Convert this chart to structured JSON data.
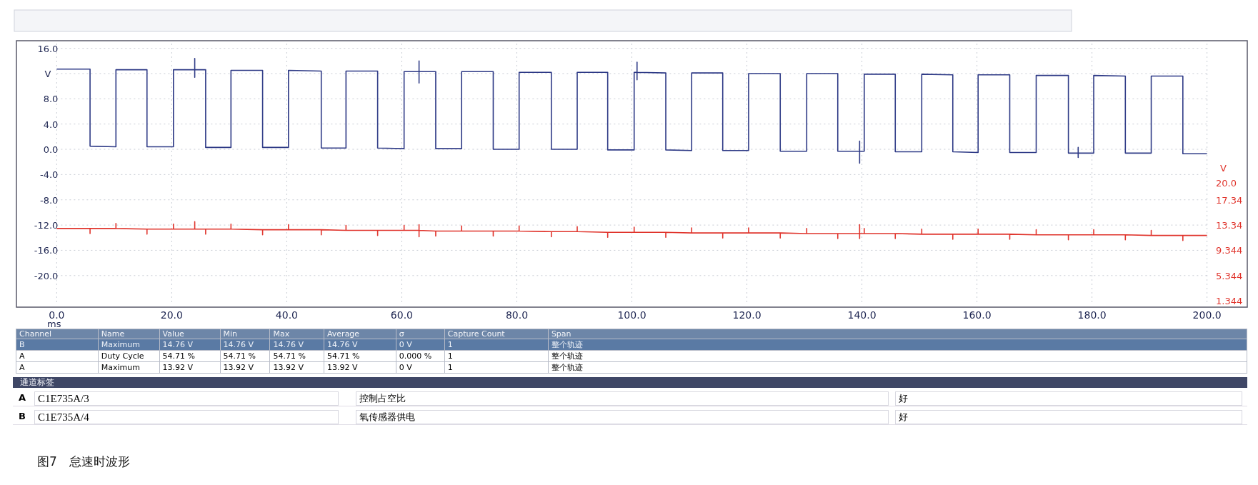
{
  "chart_data": [
    {
      "type": "line",
      "xlabel": "ms",
      "ylabel": "V",
      "y2label": "V",
      "xlim": [
        -7,
        207
      ],
      "ylim": [
        -25,
        17.2
      ],
      "y2lim": [
        0.344,
        42.544
      ],
      "xticks": [
        {
          "value": 0,
          "label": "0.0"
        },
        {
          "value": 20,
          "label": "20.0"
        },
        {
          "value": 40,
          "label": "40.0"
        },
        {
          "value": 60,
          "label": "60.0"
        },
        {
          "value": 80,
          "label": "80.0"
        },
        {
          "value": 100,
          "label": "100.0"
        },
        {
          "value": 120,
          "label": "120.0"
        },
        {
          "value": 140,
          "label": "140.0"
        },
        {
          "value": 160,
          "label": "160.0"
        },
        {
          "value": 180,
          "label": "180.0"
        },
        {
          "value": 200,
          "label": "200.0"
        }
      ],
      "yticks": [
        {
          "value": -20,
          "label": "-20.0"
        },
        {
          "value": -16,
          "label": "-16.0"
        },
        {
          "value": -12,
          "label": "-12.0"
        },
        {
          "value": -8,
          "label": "-8.0"
        },
        {
          "value": -4,
          "label": "-4.0"
        },
        {
          "value": 0,
          "label": "0.0"
        },
        {
          "value": 4,
          "label": "4.0"
        },
        {
          "value": 8,
          "label": "8.0"
        },
        {
          "value": 12,
          "label": null
        },
        {
          "value": 16,
          "label": "16.0"
        }
      ],
      "y2ticks": [
        {
          "value": 1.344,
          "label": "1.344"
        },
        {
          "value": 5.344,
          "label": "5.344"
        },
        {
          "value": 9.344,
          "label": "9.344"
        },
        {
          "value": 13.34,
          "label": "13.34"
        },
        {
          "value": 17.34,
          "label": "17.34"
        },
        {
          "value": 20,
          "label": "20.0"
        }
      ],
      "grid": true,
      "series": [
        {
          "color": "#2e3a86",
          "x": [
            0,
            5.8,
            5.8,
            10.3,
            10.3,
            15.7,
            15.7,
            20.3,
            20.3,
            24,
            24,
            24,
            24,
            25.9,
            25.9,
            30.3,
            30.3,
            35.8,
            35.8,
            40.3,
            40.3,
            46,
            46,
            50.3,
            50.3,
            55.8,
            55.8,
            60.4,
            60.4,
            63,
            63,
            63,
            63,
            65.9,
            65.9,
            70.4,
            70.4,
            75.9,
            75.9,
            80.4,
            80.4,
            86,
            86,
            90.5,
            90.5,
            95.8,
            95.8,
            100.4,
            100.4,
            100.9,
            100.9,
            100.9,
            100.9,
            105.9,
            105.9,
            110.4,
            110.4,
            115.8,
            115.8,
            120.3,
            120.3,
            125.8,
            125.8,
            130.4,
            130.4,
            135.8,
            135.8,
            139.6,
            139.6,
            139.6,
            139.6,
            140.4,
            140.4,
            145.8,
            145.8,
            150.4,
            150.4,
            155.8,
            155.8,
            160.2,
            160.2,
            165.7,
            165.7,
            170.3,
            170.3,
            175.9,
            175.9,
            177.6,
            177.6,
            177.6,
            177.6,
            180.3,
            180.3,
            185.8,
            185.8,
            190.3,
            190.3,
            195.8,
            195.8,
            200
          ],
          "values": [
            12.7,
            12.7,
            0.5,
            0.4,
            12.6,
            12.6,
            0.4,
            0.4,
            12.6,
            12.6,
            14.4,
            11.4,
            12.6,
            12.6,
            0.3,
            0.3,
            12.5,
            12.5,
            0.3,
            0.3,
            12.5,
            12.4,
            0.2,
            0.2,
            12.4,
            12.4,
            0.2,
            0.1,
            12.3,
            12.3,
            14.0,
            10.5,
            12.3,
            12.3,
            0.1,
            0.1,
            12.3,
            12.3,
            0.0,
            0.0,
            12.2,
            12.2,
            0.0,
            0.0,
            12.2,
            12.2,
            -0.1,
            -0.1,
            12.2,
            12.2,
            13.8,
            11.0,
            12.2,
            12.1,
            -0.1,
            -0.2,
            12.1,
            12.1,
            -0.2,
            -0.2,
            12.0,
            12.0,
            -0.3,
            -0.3,
            12.0,
            12.0,
            -0.3,
            -0.3,
            1.3,
            -2.2,
            -0.3,
            -0.3,
            11.9,
            11.9,
            -0.4,
            -0.4,
            11.9,
            11.8,
            -0.4,
            -0.5,
            11.8,
            11.8,
            -0.5,
            -0.5,
            11.7,
            11.7,
            -0.6,
            -0.6,
            0.3,
            -1.3,
            -0.6,
            -0.6,
            11.7,
            11.6,
            -0.6,
            -0.6,
            11.6,
            11.6,
            -0.7,
            -0.7
          ]
        },
        {
          "color": "#e0342c",
          "axis": "y2",
          "x": [
            0,
            5.8,
            5.8,
            5.8,
            10.3,
            10.3,
            10.3,
            15.7,
            15.7,
            15.7,
            20.3,
            20.3,
            20.3,
            24,
            24,
            24,
            25.9,
            25.9,
            25.9,
            30.3,
            30.3,
            30.3,
            35.8,
            35.8,
            35.8,
            40.3,
            40.3,
            40.3,
            46,
            46,
            46,
            50.3,
            50.3,
            50.3,
            55.8,
            55.8,
            55.8,
            60.4,
            60.4,
            60.4,
            63,
            63,
            63,
            63,
            65.9,
            65.9,
            65.9,
            70.4,
            70.4,
            70.4,
            75.9,
            75.9,
            75.9,
            80.4,
            80.4,
            80.4,
            86,
            86,
            86,
            90.5,
            90.5,
            90.5,
            95.8,
            95.8,
            95.8,
            100.4,
            100.4,
            100.4,
            105.9,
            105.9,
            105.9,
            110.4,
            110.4,
            110.4,
            115.8,
            115.8,
            115.8,
            120.3,
            120.3,
            120.3,
            125.8,
            125.8,
            125.8,
            130.4,
            130.4,
            130.4,
            135.8,
            135.8,
            135.8,
            139.6,
            139.6,
            139.6,
            139.6,
            140.4,
            140.4,
            140.4,
            145.8,
            145.8,
            145.8,
            150.4,
            150.4,
            150.4,
            155.8,
            155.8,
            155.8,
            160.2,
            160.2,
            160.2,
            165.7,
            165.7,
            165.7,
            170.3,
            170.3,
            170.3,
            175.9,
            175.9,
            175.9,
            180.3,
            180.3,
            180.3,
            185.8,
            185.8,
            185.8,
            190.3,
            190.3,
            190.3,
            195.8,
            195.8,
            195.8,
            200
          ],
          "values": [
            12.8,
            12.8,
            12.0,
            12.8,
            12.8,
            13.6,
            12.8,
            12.7,
            11.9,
            12.7,
            12.7,
            13.5,
            12.7,
            12.7,
            13.9,
            12.7,
            12.7,
            11.9,
            12.7,
            12.7,
            13.5,
            12.7,
            12.6,
            11.8,
            12.6,
            12.6,
            13.4,
            12.6,
            12.6,
            11.8,
            12.6,
            12.5,
            13.3,
            12.5,
            12.5,
            11.7,
            12.5,
            12.5,
            13.3,
            12.5,
            12.5,
            13.4,
            11.5,
            12.5,
            12.4,
            11.6,
            12.4,
            12.4,
            13.2,
            12.4,
            12.4,
            11.6,
            12.4,
            12.4,
            13.2,
            12.4,
            12.3,
            11.5,
            12.3,
            12.3,
            13.1,
            12.3,
            12.2,
            11.4,
            12.2,
            12.2,
            13.0,
            12.2,
            12.2,
            11.4,
            12.2,
            12.1,
            12.9,
            12.1,
            12.1,
            11.3,
            12.1,
            12.1,
            12.9,
            12.1,
            12.1,
            11.3,
            12.1,
            12.0,
            12.8,
            12.0,
            12.0,
            11.2,
            12.0,
            12.0,
            13.4,
            11.2,
            12.0,
            12.0,
            12.8,
            12.0,
            12.0,
            11.2,
            12.0,
            11.9,
            12.7,
            11.9,
            11.9,
            11.1,
            11.9,
            11.9,
            12.7,
            11.9,
            11.9,
            11.1,
            11.9,
            11.8,
            12.6,
            11.8,
            11.8,
            11.0,
            11.8,
            11.8,
            12.6,
            11.8,
            11.8,
            11.0,
            11.8,
            11.7,
            12.5,
            11.7,
            11.7,
            10.9,
            11.7,
            11.7
          ]
        }
      ],
      "annotations": [
        "图7　怠速时波形"
      ]
    },
    {
      "type": "other",
      "categories": [
        "Channel",
        "Name",
        "Value",
        "Min",
        "Max",
        "Average",
        "σ",
        "Capture Count",
        "Span"
      ],
      "cell_labels": [
        [
          "B",
          "Maximum",
          "14.76 V",
          "14.76 V",
          "14.76 V",
          "14.76 V",
          "0 V",
          "1",
          "整个轨迹"
        ],
        [
          "A",
          "Duty Cycle",
          "54.71 %",
          "54.71 %",
          "54.71 %",
          "54.71 %",
          "0.000 %",
          "1",
          "整个轨迹"
        ],
        [
          "A",
          "Maximum",
          "13.92 V",
          "13.92 V",
          "13.92 V",
          "13.92 V",
          "0 V",
          "1",
          "整个轨迹"
        ]
      ]
    },
    {
      "type": "other",
      "title": "通道标签",
      "cell_labels": [
        [
          "A",
          "C1E735A/3",
          "控制占空比",
          "好"
        ],
        [
          "B",
          "C1E735A/4",
          "氧传感器供电",
          "好"
        ]
      ]
    }
  ]
}
